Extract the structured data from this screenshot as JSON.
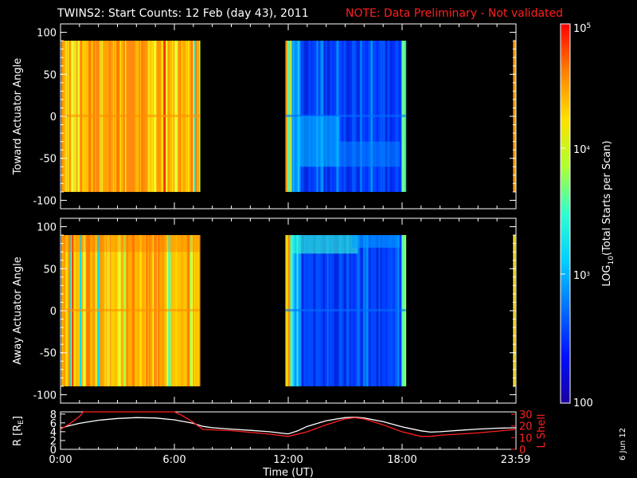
{
  "title": {
    "main": "TWINS2: Start Counts: 12 Feb (day  43), 2011",
    "note": "NOTE: Data Preliminary - Not validated",
    "note_color": "#ff2020"
  },
  "stamp": "6 Jun 12",
  "chart_data": [
    {
      "type": "heatmap",
      "name": "toward-panel",
      "ylabel": "Toward Actuator Angle",
      "yticks": [
        -100,
        -50,
        0,
        50,
        100
      ],
      "ylim": [
        -110,
        110
      ],
      "xlim": [
        0,
        24
      ],
      "data_yrange": [
        -90,
        90
      ],
      "segments": [
        {
          "start": 0.05,
          "end": 7.35,
          "palette": "warm"
        },
        {
          "start": 11.85,
          "end": 18.2,
          "palette": "cool"
        },
        {
          "start": 23.85,
          "end": 23.98,
          "palette": "warm"
        }
      ]
    },
    {
      "type": "heatmap",
      "name": "away-panel",
      "ylabel": "Away Actuator Angle",
      "yticks": [
        -100,
        -50,
        0,
        50,
        100
      ],
      "ylim": [
        -110,
        110
      ],
      "xlim": [
        0,
        24
      ],
      "data_yrange": [
        -90,
        90
      ],
      "segments": [
        {
          "start": 0.05,
          "end": 7.35,
          "palette": "warm"
        },
        {
          "start": 11.85,
          "end": 18.2,
          "palette": "cool"
        },
        {
          "start": 23.85,
          "end": 23.98,
          "palette": "warm"
        }
      ]
    },
    {
      "type": "line",
      "name": "orbit-panel",
      "xlabel": "Time (UT)",
      "xticks": [
        "0:00",
        "6:00",
        "12:00",
        "18:00",
        "23:59"
      ],
      "xtick_values": [
        0,
        6,
        12,
        18,
        23.98
      ],
      "xlim": [
        0,
        24
      ],
      "left_axis": {
        "label": "R [R",
        "label_sub": "E",
        "label_end": "]",
        "ticks": [
          0,
          2,
          4,
          6,
          8
        ],
        "ylim": [
          0,
          8.5
        ]
      },
      "right_axis": {
        "label": "L Shell",
        "ticks": [
          0,
          10,
          20,
          30
        ],
        "ylim": [
          0,
          32
        ],
        "color": "#ff2020"
      },
      "series": [
        {
          "axis": "left",
          "color": "#ffffff",
          "x": [
            0,
            0.5,
            1,
            2,
            3,
            4,
            5,
            6,
            7,
            7.5,
            8,
            9,
            10,
            11,
            11.8,
            12,
            12.5,
            13,
            14,
            15,
            15.5,
            16,
            17,
            18,
            19,
            19.5,
            20,
            21,
            22,
            23,
            24
          ],
          "y": [
            4.8,
            5.4,
            5.9,
            6.6,
            7.0,
            7.2,
            7.1,
            6.7,
            5.9,
            5.2,
            4.9,
            4.6,
            4.3,
            4.0,
            3.6,
            3.5,
            4.2,
            5.2,
            6.5,
            7.2,
            7.3,
            7.1,
            6.3,
            5.1,
            4.2,
            3.9,
            4.0,
            4.3,
            4.6,
            4.8,
            4.9
          ]
        },
        {
          "axis": "right",
          "color": "#ff2020",
          "x": [
            0,
            0.5,
            1,
            1.2,
            6.0,
            6.4,
            7.0,
            7.5,
            9,
            11,
            12,
            13,
            14,
            15,
            15.5,
            16,
            17,
            18,
            19,
            19.5,
            20,
            22,
            24
          ],
          "y": [
            17,
            22,
            28,
            32,
            32,
            29,
            23,
            17,
            16,
            13,
            11,
            15,
            21,
            26,
            27,
            26,
            21,
            15,
            11,
            11,
            12,
            14,
            17
          ]
        }
      ]
    }
  ],
  "colorbar": {
    "label_main": "LOG",
    "label_sub": "10",
    "label_rest": "(Total Starts per Scan)",
    "top_label_base": "10",
    "top_label_exp": "5",
    "mid_label_base": "10",
    "mid_label_exp": "4",
    "low_label_base": "10",
    "low_label_exp": "3",
    "bottom_label": "100",
    "stops": [
      "#1a00a0",
      "#0010ff",
      "#0070ff",
      "#00d0ff",
      "#30ffd0",
      "#b0ff30",
      "#ffe000",
      "#ff8000",
      "#ff0000"
    ]
  }
}
